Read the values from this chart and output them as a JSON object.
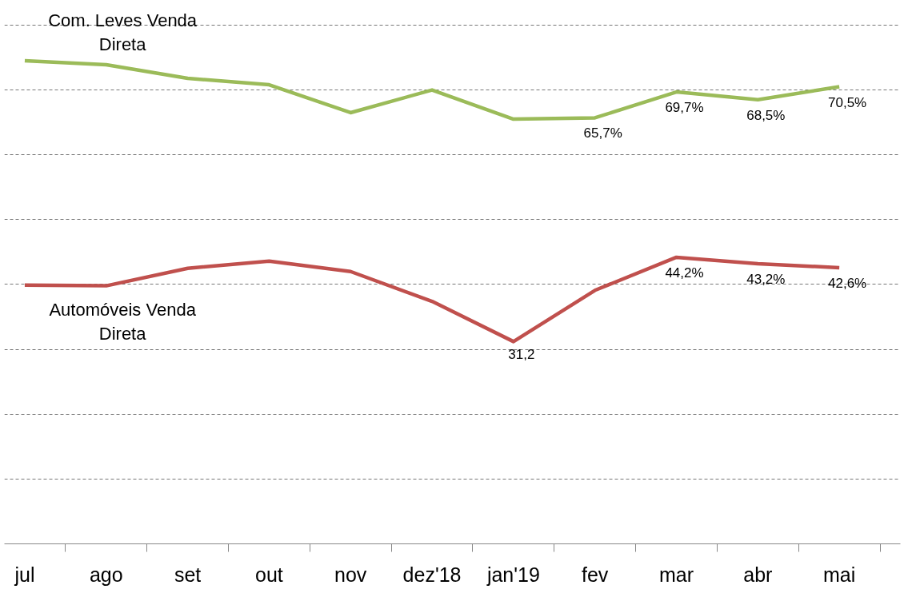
{
  "chart_data": {
    "type": "line",
    "categories": [
      "jul",
      "ago",
      "set",
      "out",
      "nov",
      "dez'18",
      "jan'19",
      "fev",
      "mar",
      "abr",
      "mai"
    ],
    "yticks": [
      {
        "value": 0,
        "label": null
      },
      {
        "value": 10,
        "label": null
      },
      {
        "value": 20,
        "label": null
      },
      {
        "value": 30,
        "label": null
      },
      {
        "value": 40,
        "label": null
      },
      {
        "value": 50,
        "label": null
      },
      {
        "value": 60,
        "label": null
      },
      {
        "value": 70,
        "label": null
      },
      {
        "value": 80,
        "label": null
      }
    ],
    "tick_labels": "x",
    "grid": "y",
    "marker": "none",
    "line_style": "solid",
    "series": [
      {
        "name": "Com. Leves Venda Direta",
        "color": "#9bbb59",
        "values": [
          74.5,
          73.9,
          71.8,
          70.8,
          66.5,
          70,
          65.5,
          65.7,
          69.7,
          68.5,
          70.5
        ],
        "value_labels": [
          null,
          null,
          null,
          null,
          null,
          null,
          null,
          "65,7%",
          "69,7%",
          "68,5%",
          "70,5%"
        ]
      },
      {
        "name": "Automóveis Venda Direta",
        "color": "#c0504d",
        "values": [
          39.9,
          39.8,
          42.5,
          43.6,
          42,
          37.4,
          31.2,
          39.1,
          44.2,
          43.2,
          42.6
        ],
        "value_labels": [
          null,
          null,
          null,
          null,
          null,
          null,
          "31,2",
          null,
          "44,2%",
          "43,2%",
          "42,6%"
        ]
      }
    ]
  }
}
